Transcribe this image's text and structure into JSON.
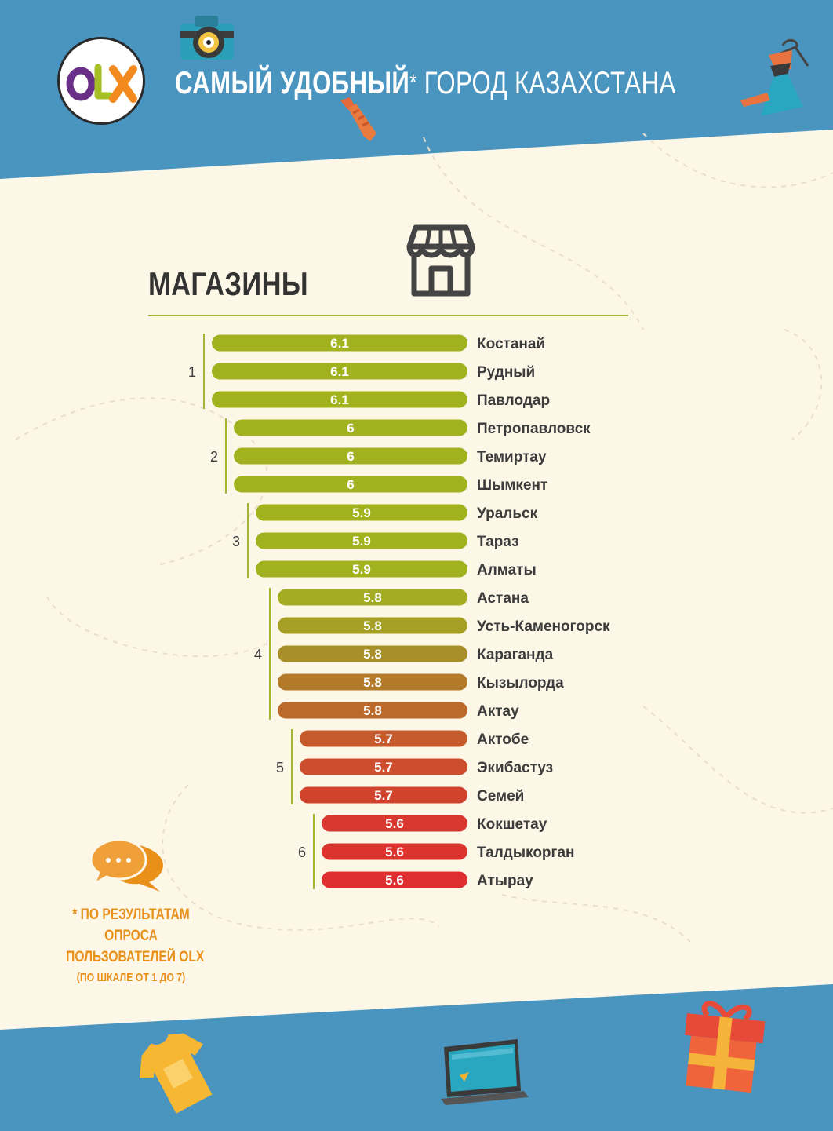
{
  "header": {
    "logo_text": "OLX",
    "title_bold": "САМЫЙ УДОБНЫЙ",
    "title_star": "*",
    "title_rest": " ГОРОД КАЗАХСТАНА"
  },
  "section": {
    "title": "МАГАЗИНЫ",
    "icon": "store-icon"
  },
  "footnote": {
    "line1": "* ПО РЕЗУЛЬТАТАМ",
    "line2": "ОПРОСА",
    "line3": "ПОЛЬЗОВАТЕЛЕЙ OLX",
    "line4": "(ПО ШКАЛЕ ОТ 1 ДО 7)",
    "icon": "chat-bubbles-icon"
  },
  "decorations": [
    "camera-icon",
    "tie-icon",
    "dress-on-hanger-icon",
    "tshirt-icon",
    "laptop-icon",
    "gift-icon"
  ],
  "colors": {
    "header_blue": "#4a94c0",
    "accent_green": "#a2b432",
    "footnote_orange": "#e8901a"
  },
  "chart_data": {
    "type": "bar",
    "orientation": "horizontal",
    "title": "МАГАЗИНЫ",
    "scale": [
      1,
      7
    ],
    "groups": [
      {
        "rank": "1",
        "items": [
          {
            "city": "Костанай",
            "value": 6.1,
            "label": "6.1",
            "color": "#a2b21f"
          },
          {
            "city": "Рудный",
            "value": 6.1,
            "label": "6.1",
            "color": "#a2b21f"
          },
          {
            "city": "Павлодар",
            "value": 6.1,
            "label": "6.1",
            "color": "#a2b21f"
          }
        ]
      },
      {
        "rank": "2",
        "items": [
          {
            "city": "Петропавловск",
            "value": 6.0,
            "label": "6",
            "color": "#a2b21f"
          },
          {
            "city": "Темиртау",
            "value": 6.0,
            "label": "6",
            "color": "#a2b21f"
          },
          {
            "city": "Шымкент",
            "value": 6.0,
            "label": "6",
            "color": "#a2b21f"
          }
        ]
      },
      {
        "rank": "3",
        "items": [
          {
            "city": "Уральск",
            "value": 5.9,
            "label": "5.9",
            "color": "#a2b21f"
          },
          {
            "city": "Тараз",
            "value": 5.9,
            "label": "5.9",
            "color": "#a2b21f"
          },
          {
            "city": "Алматы",
            "value": 5.9,
            "label": "5.9",
            "color": "#a2b21f"
          }
        ]
      },
      {
        "rank": "4",
        "items": [
          {
            "city": "Астана",
            "value": 5.8,
            "label": "5.8",
            "color": "#a3ac22"
          },
          {
            "city": "Усть-Каменогорск",
            "value": 5.8,
            "label": "5.8",
            "color": "#a5a025"
          },
          {
            "city": "Караганда",
            "value": 5.8,
            "label": "5.8",
            "color": "#a88f27"
          },
          {
            "city": "Кызылорда",
            "value": 5.8,
            "label": "5.8",
            "color": "#b37a2a"
          },
          {
            "city": "Актау",
            "value": 5.8,
            "label": "5.8",
            "color": "#bb6a2b"
          }
        ]
      },
      {
        "rank": "5",
        "items": [
          {
            "city": "Актобе",
            "value": 5.7,
            "label": "5.7",
            "color": "#c55a2c"
          },
          {
            "city": "Экибастуз",
            "value": 5.7,
            "label": "5.7",
            "color": "#cc4e2d"
          },
          {
            "city": "Семей",
            "value": 5.7,
            "label": "5.7",
            "color": "#d2432e"
          }
        ]
      },
      {
        "rank": "6",
        "items": [
          {
            "city": "Кокшетау",
            "value": 5.6,
            "label": "5.6",
            "color": "#d8382f"
          },
          {
            "city": "Талдыкорган",
            "value": 5.6,
            "label": "5.6",
            "color": "#dc332f"
          },
          {
            "city": "Атырау",
            "value": 5.6,
            "label": "5.6",
            "color": "#de2e2f"
          }
        ]
      }
    ]
  }
}
